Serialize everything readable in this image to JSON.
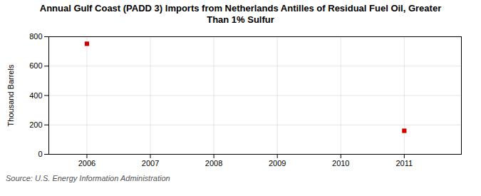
{
  "chart_data": {
    "type": "scatter",
    "title": "Annual Gulf Coast (PADD 3) Imports from Netherlands Antilles of Residual Fuel Oil, Greater\nThan 1% Sulfur",
    "ylabel": "Thousand Barrels",
    "source": "Source: U.S. Energy Information Administration",
    "x": [
      2006,
      2011
    ],
    "values": [
      752,
      160
    ],
    "color": "#cc0000",
    "marker": "square",
    "xlim": [
      2005.4,
      2011.9
    ],
    "xticks": [
      2006,
      2007,
      2008,
      2009,
      2010,
      2011
    ],
    "ylim": [
      0,
      800
    ],
    "yticks": [
      0,
      200,
      400,
      600,
      800
    ],
    "grid": true
  }
}
